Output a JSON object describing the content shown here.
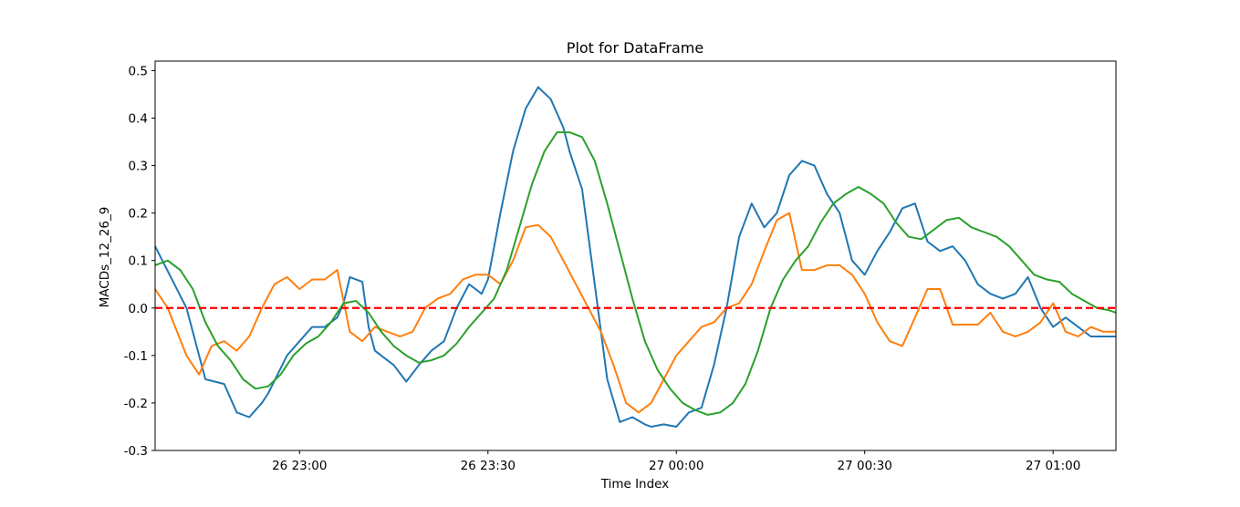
{
  "chart_data": {
    "type": "line",
    "title": "Plot for DataFrame",
    "xlabel": "Time Index",
    "ylabel": "MACDs_12_26_9",
    "ylim": [
      -0.3,
      0.52
    ],
    "yticks": [
      -0.3,
      -0.2,
      -0.1,
      0.0,
      0.1,
      0.2,
      0.3,
      0.4,
      0.5
    ],
    "xlim": [
      "26 22:37",
      "27 01:10"
    ],
    "xticks": [
      {
        "value": "26 23:00",
        "label": "26 23:00"
      },
      {
        "value": "26 23:30",
        "label": "26 23:30"
      },
      {
        "value": "27 00:00",
        "label": "27 00:00"
      },
      {
        "value": "27 00:30",
        "label": "27 00:30"
      },
      {
        "value": "27 01:00",
        "label": "27 01:00"
      }
    ],
    "colors": {
      "blue": "#1f77b4",
      "orange": "#ff7f0e",
      "green": "#2ca02c",
      "zero_line": "#ff0000"
    },
    "reference_line": {
      "y": 0.0,
      "style": "dashed",
      "color": "#ff0000"
    },
    "grid": false,
    "series": [
      {
        "color": "#1f77b4",
        "x": [
          "26 22:37",
          "26 22:42",
          "26 22:45",
          "26 22:48",
          "26 22:50",
          "26 22:52",
          "26 22:54",
          "26 22:55",
          "26 22:58",
          "26 23:00",
          "26 23:02",
          "26 23:04",
          "26 23:06",
          "26 23:07",
          "26 23:08",
          "26 23:10",
          "26 23:11",
          "26 23:12",
          "26 23:13",
          "26 23:15",
          "26 23:17",
          "26 23:19",
          "26 23:21",
          "26 23:23",
          "26 23:25",
          "26 23:27",
          "26 23:29",
          "26 23:30",
          "26 23:32",
          "26 23:34",
          "26 23:36",
          "26 23:38",
          "26 23:40",
          "26 23:42",
          "26 23:43",
          "26 23:45",
          "26 23:47",
          "26 23:49",
          "26 23:51",
          "26 23:53",
          "26 23:55",
          "26 23:56",
          "26 23:58",
          "27 00:00",
          "27 00:02",
          "27 00:04",
          "27 00:06",
          "27 00:08",
          "27 00:10",
          "27 00:12",
          "27 00:14",
          "27 00:16",
          "27 00:18",
          "27 00:20",
          "27 00:22",
          "27 00:24",
          "27 00:26",
          "27 00:28",
          "27 00:30",
          "27 00:32",
          "27 00:34",
          "27 00:36",
          "27 00:38",
          "27 00:40",
          "27 00:42",
          "27 00:44",
          "27 00:46",
          "27 00:48",
          "27 00:50",
          "27 00:52",
          "27 00:54",
          "27 00:56",
          "27 00:58",
          "27 01:00",
          "27 01:02",
          "27 01:04",
          "27 01:06",
          "27 01:08",
          "27 01:10"
        ],
        "y": [
          0.13,
          0.0,
          -0.15,
          -0.16,
          -0.22,
          -0.23,
          -0.2,
          -0.18,
          -0.1,
          -0.07,
          -0.04,
          -0.04,
          -0.02,
          0.01,
          0.065,
          0.055,
          -0.04,
          -0.09,
          -0.1,
          -0.12,
          -0.155,
          -0.12,
          -0.09,
          -0.07,
          0.0,
          0.05,
          0.03,
          0.06,
          0.2,
          0.33,
          0.42,
          0.465,
          0.44,
          0.38,
          0.33,
          0.25,
          0.05,
          -0.15,
          -0.24,
          -0.23,
          -0.245,
          -0.25,
          -0.245,
          -0.25,
          -0.22,
          -0.21,
          -0.12,
          0.0,
          0.15,
          0.22,
          0.17,
          0.2,
          0.28,
          0.31,
          0.3,
          0.24,
          0.2,
          0.1,
          0.07,
          0.12,
          0.16,
          0.21,
          0.22,
          0.14,
          0.12,
          0.13,
          0.1,
          0.05,
          0.03,
          0.02,
          0.03,
          0.065,
          0.0,
          -0.04,
          -0.02,
          -0.04,
          -0.06,
          -0.06,
          -0.06
        ]
      },
      {
        "color": "#ff7f0e",
        "x": [
          "26 22:37",
          "26 22:39",
          "26 22:42",
          "26 22:44",
          "26 22:46",
          "26 22:48",
          "26 22:50",
          "26 22:52",
          "26 22:54",
          "26 22:56",
          "26 22:58",
          "26 23:00",
          "26 23:02",
          "26 23:04",
          "26 23:06",
          "26 23:08",
          "26 23:10",
          "26 23:12",
          "26 23:14",
          "26 23:16",
          "26 23:18",
          "26 23:20",
          "26 23:22",
          "26 23:24",
          "26 23:26",
          "26 23:28",
          "26 23:30",
          "26 23:32",
          "26 23:34",
          "26 23:36",
          "26 23:38",
          "26 23:40",
          "26 23:42",
          "26 23:44",
          "26 23:46",
          "26 23:48",
          "26 23:50",
          "26 23:52",
          "26 23:54",
          "26 23:56",
          "26 23:58",
          "27 00:00",
          "27 00:02",
          "27 00:04",
          "27 00:06",
          "27 00:08",
          "27 00:10",
          "27 00:12",
          "27 00:14",
          "27 00:16",
          "27 00:18",
          "27 00:20",
          "27 00:22",
          "27 00:24",
          "27 00:26",
          "27 00:28",
          "27 00:30",
          "27 00:32",
          "27 00:34",
          "27 00:36",
          "27 00:38",
          "27 00:40",
          "27 00:42",
          "27 00:44",
          "27 00:46",
          "27 00:48",
          "27 00:50",
          "27 00:52",
          "27 00:54",
          "27 00:56",
          "27 00:58",
          "27 01:00",
          "27 01:02",
          "27 01:04",
          "27 01:06",
          "27 01:08",
          "27 01:10"
        ],
        "y": [
          0.04,
          0.0,
          -0.1,
          -0.14,
          -0.08,
          -0.07,
          -0.09,
          -0.06,
          0.0,
          0.05,
          0.065,
          0.04,
          0.06,
          0.06,
          0.08,
          -0.05,
          -0.07,
          -0.04,
          -0.05,
          -0.06,
          -0.05,
          0.0,
          0.02,
          0.03,
          0.06,
          0.07,
          0.07,
          0.05,
          0.1,
          0.17,
          0.175,
          0.15,
          0.1,
          0.05,
          0.0,
          -0.05,
          -0.12,
          -0.2,
          -0.22,
          -0.2,
          -0.15,
          -0.1,
          -0.07,
          -0.04,
          -0.03,
          0.0,
          0.01,
          0.05,
          0.12,
          0.185,
          0.2,
          0.08,
          0.08,
          0.09,
          0.09,
          0.07,
          0.03,
          -0.03,
          -0.07,
          -0.08,
          -0.02,
          0.04,
          0.04,
          -0.035,
          -0.035,
          -0.035,
          -0.01,
          -0.05,
          -0.06,
          -0.05,
          -0.03,
          0.01,
          -0.05,
          -0.06,
          -0.04,
          -0.05,
          -0.05
        ]
      },
      {
        "color": "#2ca02c",
        "x": [
          "26 22:37",
          "26 22:39",
          "26 22:41",
          "26 22:43",
          "26 22:45",
          "26 22:47",
          "26 22:49",
          "26 22:51",
          "26 22:53",
          "26 22:55",
          "26 22:57",
          "26 22:59",
          "26 23:01",
          "26 23:03",
          "26 23:05",
          "26 23:07",
          "26 23:09",
          "26 23:11",
          "26 23:13",
          "26 23:15",
          "26 23:17",
          "26 23:19",
          "26 23:21",
          "26 23:23",
          "26 23:25",
          "26 23:27",
          "26 23:29",
          "26 23:31",
          "26 23:33",
          "26 23:35",
          "26 23:37",
          "26 23:39",
          "26 23:41",
          "26 23:43",
          "26 23:45",
          "26 23:47",
          "26 23:49",
          "26 23:51",
          "26 23:53",
          "26 23:55",
          "26 23:57",
          "26 23:59",
          "27 00:01",
          "27 00:03",
          "27 00:05",
          "27 00:07",
          "27 00:09",
          "27 00:11",
          "27 00:13",
          "27 00:15",
          "27 00:17",
          "27 00:19",
          "27 00:21",
          "27 00:23",
          "27 00:25",
          "27 00:27",
          "27 00:29",
          "27 00:31",
          "27 00:33",
          "27 00:35",
          "27 00:37",
          "27 00:39",
          "27 00:41",
          "27 00:43",
          "27 00:45",
          "27 00:47",
          "27 00:49",
          "27 00:51",
          "27 00:53",
          "27 00:55",
          "27 00:57",
          "27 00:59",
          "27 01:01",
          "27 01:03",
          "27 01:05",
          "27 01:07",
          "27 01:09",
          "27 01:10"
        ],
        "y": [
          0.09,
          0.1,
          0.08,
          0.04,
          -0.03,
          -0.08,
          -0.11,
          -0.15,
          -0.17,
          -0.165,
          -0.14,
          -0.1,
          -0.075,
          -0.06,
          -0.03,
          0.01,
          0.015,
          -0.01,
          -0.05,
          -0.08,
          -0.1,
          -0.115,
          -0.11,
          -0.1,
          -0.075,
          -0.04,
          -0.01,
          0.02,
          0.08,
          0.17,
          0.26,
          0.33,
          0.37,
          0.37,
          0.36,
          0.31,
          0.22,
          0.12,
          0.02,
          -0.07,
          -0.13,
          -0.17,
          -0.2,
          -0.215,
          -0.225,
          -0.22,
          -0.2,
          -0.16,
          -0.09,
          0.0,
          0.06,
          0.1,
          0.13,
          0.18,
          0.22,
          0.24,
          0.255,
          0.24,
          0.22,
          0.18,
          0.15,
          0.145,
          0.165,
          0.185,
          0.19,
          0.17,
          0.16,
          0.15,
          0.13,
          0.1,
          0.07,
          0.06,
          0.055,
          0.03,
          0.015,
          0.0,
          -0.005,
          -0.01
        ]
      }
    ]
  }
}
